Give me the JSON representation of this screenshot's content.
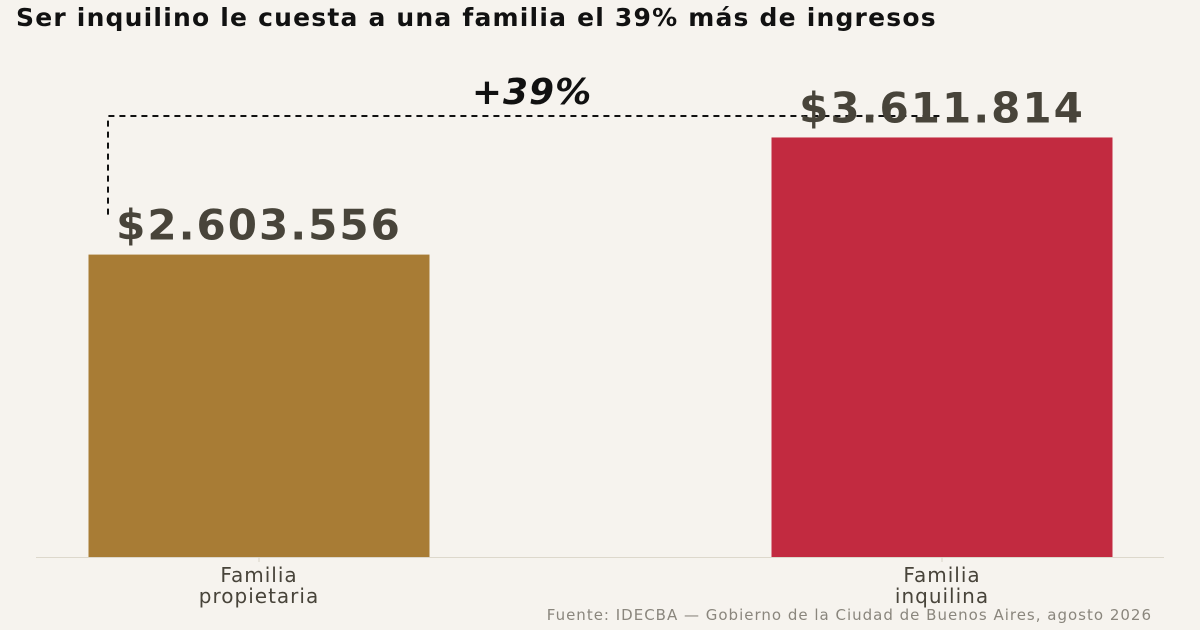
{
  "chart_data": {
    "type": "bar",
    "title": "Ser inquilino le cuesta a una familia el 39% más de ingresos",
    "categories": [
      "Familia propietaria",
      "Familia inquilina"
    ],
    "category_lines": [
      [
        "Familia",
        "propietaria"
      ],
      [
        "Familia",
        "inquilina"
      ]
    ],
    "values": [
      2603556,
      3611814
    ],
    "value_labels": [
      "$2.603.556",
      "$3.611.814"
    ],
    "colors": [
      "#a87c35",
      "#c22a40"
    ],
    "ylim": [
      0,
      3900000
    ],
    "grid": false,
    "legend": "none",
    "annotation": {
      "text": "+39%",
      "style": "dashed bracket connecting both bars"
    },
    "source": "Fuente: IDECBA — Gobierno de la Ciudad de Buenos Aires, agosto 2026"
  }
}
